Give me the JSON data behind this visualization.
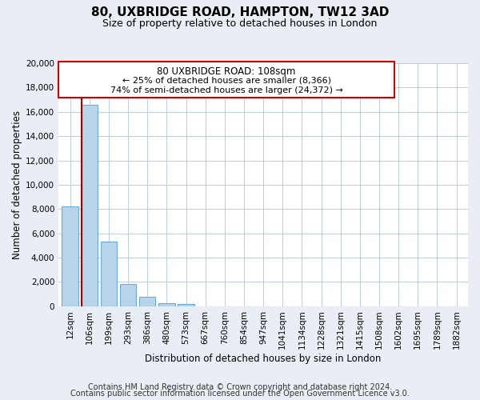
{
  "title": "80, UXBRIDGE ROAD, HAMPTON, TW12 3AD",
  "subtitle": "Size of property relative to detached houses in London",
  "xlabel": "Distribution of detached houses by size in London",
  "ylabel": "Number of detached properties",
  "bar_labels": [
    "12sqm",
    "106sqm",
    "199sqm",
    "293sqm",
    "386sqm",
    "480sqm",
    "573sqm",
    "667sqm",
    "760sqm",
    "854sqm",
    "947sqm",
    "1041sqm",
    "1134sqm",
    "1228sqm",
    "1321sqm",
    "1415sqm",
    "1508sqm",
    "1602sqm",
    "1695sqm",
    "1789sqm",
    "1882sqm"
  ],
  "bar_values": [
    8200,
    16600,
    5300,
    1800,
    750,
    250,
    200,
    0,
    0,
    0,
    0,
    0,
    0,
    0,
    0,
    0,
    0,
    0,
    0,
    0,
    0
  ],
  "bar_color": "#b8d4ea",
  "bar_edge_color": "#6aaad4",
  "ylim": [
    0,
    20000
  ],
  "yticks": [
    0,
    2000,
    4000,
    6000,
    8000,
    10000,
    12000,
    14000,
    16000,
    18000,
    20000
  ],
  "property_line_color": "#aa0000",
  "annotation_title": "80 UXBRIDGE ROAD: 108sqm",
  "annotation_line1": "← 25% of detached houses are smaller (8,366)",
  "annotation_line2": "74% of semi-detached houses are larger (24,372) →",
  "annotation_box_color": "#ffffff",
  "annotation_box_edge": "#cc0000",
  "footer1": "Contains HM Land Registry data © Crown copyright and database right 2024.",
  "footer2": "Contains public sector information licensed under the Open Government Licence v3.0.",
  "bg_color": "#e8eef4",
  "plot_bg_color": "#ffffff",
  "grid_color": "#c0ccd8",
  "title_fontsize": 11,
  "subtitle_fontsize": 9,
  "axis_label_fontsize": 8.5,
  "tick_fontsize": 7.5,
  "footer_fontsize": 7
}
